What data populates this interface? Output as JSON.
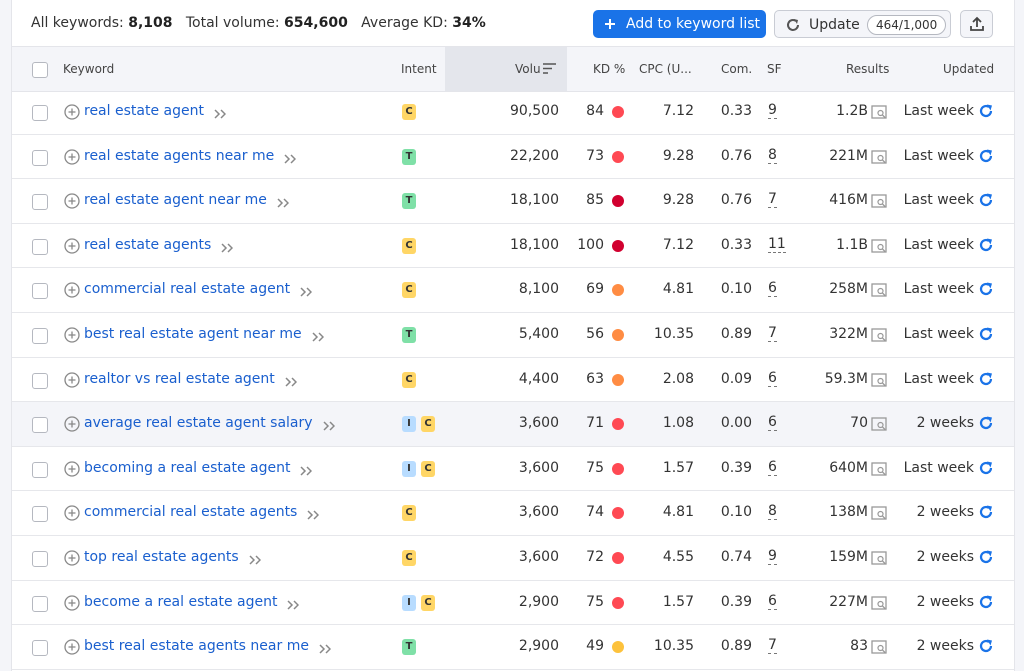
{
  "header": {
    "all_keywords_label": "All keywords:",
    "all_keywords": "8,108",
    "total_volume_label": "Total volume:",
    "total_volume": "654,600",
    "avg_kd_label": "Average KD:",
    "avg_kd": "34%",
    "add_button": "Add to keyword list",
    "update_button": "Update",
    "update_quota": "464/1,000"
  },
  "table": {
    "columns": [
      "Keyword",
      "Intent",
      "Volu",
      "KD %",
      "CPC (U...",
      "Com.",
      "SF",
      "Results",
      "Updated"
    ],
    "intent_colors": {
      "C": "#ffd666",
      "T": "#7fe0a7",
      "I": "#b8dcff"
    },
    "rows": [
      {
        "keyword": "real estate agent",
        "intent": [
          "C"
        ],
        "volume": "90,500",
        "kd": "84",
        "kd_color": "#ff4953",
        "cpc": "7.12",
        "com": "0.33",
        "sf": "9",
        "results": "1.2B",
        "updated": "Last week"
      },
      {
        "keyword": "real estate agents near me",
        "intent": [
          "T"
        ],
        "volume": "22,200",
        "kd": "73",
        "kd_color": "#ff4953",
        "cpc": "9.28",
        "com": "0.76",
        "sf": "8",
        "results": "221M",
        "updated": "Last week"
      },
      {
        "keyword": "real estate agent near me",
        "intent": [
          "T"
        ],
        "volume": "18,100",
        "kd": "85",
        "kd_color": "#d1002f",
        "cpc": "9.28",
        "com": "0.76",
        "sf": "7",
        "results": "416M",
        "updated": "Last week"
      },
      {
        "keyword": "real estate agents",
        "intent": [
          "C"
        ],
        "volume": "18,100",
        "kd": "100",
        "kd_color": "#d1002f",
        "cpc": "7.12",
        "com": "0.33",
        "sf": "11",
        "results": "1.1B",
        "updated": "Last week"
      },
      {
        "keyword": "commercial real estate agent",
        "intent": [
          "C"
        ],
        "volume": "8,100",
        "kd": "69",
        "kd_color": "#ff8c43",
        "cpc": "4.81",
        "com": "0.10",
        "sf": "6",
        "results": "258M",
        "updated": "Last week"
      },
      {
        "keyword": "best real estate agent near me",
        "intent": [
          "T"
        ],
        "volume": "5,400",
        "kd": "56",
        "kd_color": "#ff8c43",
        "cpc": "10.35",
        "com": "0.89",
        "sf": "7",
        "results": "322M",
        "updated": "Last week"
      },
      {
        "keyword": "realtor vs real estate agent",
        "intent": [
          "C"
        ],
        "volume": "4,400",
        "kd": "63",
        "kd_color": "#ff8c43",
        "cpc": "2.08",
        "com": "0.09",
        "sf": "6",
        "results": "59.3M",
        "updated": "Last week"
      },
      {
        "keyword": "average real estate agent salary",
        "intent": [
          "I",
          "C"
        ],
        "volume": "3,600",
        "kd": "71",
        "kd_color": "#ff4953",
        "cpc": "1.08",
        "com": "0.00",
        "sf": "6",
        "results": "70",
        "updated": "2 weeks"
      },
      {
        "keyword": "becoming a real estate agent",
        "intent": [
          "I",
          "C"
        ],
        "volume": "3,600",
        "kd": "75",
        "kd_color": "#ff4953",
        "cpc": "1.57",
        "com": "0.39",
        "sf": "6",
        "results": "640M",
        "updated": "Last week"
      },
      {
        "keyword": "commercial real estate agents",
        "intent": [
          "C"
        ],
        "volume": "3,600",
        "kd": "74",
        "kd_color": "#ff4953",
        "cpc": "4.81",
        "com": "0.10",
        "sf": "8",
        "results": "138M",
        "updated": "2 weeks"
      },
      {
        "keyword": "top real estate agents",
        "intent": [
          "C"
        ],
        "volume": "3,600",
        "kd": "72",
        "kd_color": "#ff4953",
        "cpc": "4.55",
        "com": "0.74",
        "sf": "9",
        "results": "159M",
        "updated": "2 weeks"
      },
      {
        "keyword": "become a real estate agent",
        "intent": [
          "I",
          "C"
        ],
        "volume": "2,900",
        "kd": "75",
        "kd_color": "#ff4953",
        "cpc": "1.57",
        "com": "0.39",
        "sf": "6",
        "results": "227M",
        "updated": "2 weeks"
      },
      {
        "keyword": "best real estate agents near me",
        "intent": [
          "T"
        ],
        "volume": "2,900",
        "kd": "49",
        "kd_color": "#fdc23c",
        "cpc": "10.35",
        "com": "0.89",
        "sf": "7",
        "results": "83",
        "updated": "2 weeks"
      }
    ]
  }
}
